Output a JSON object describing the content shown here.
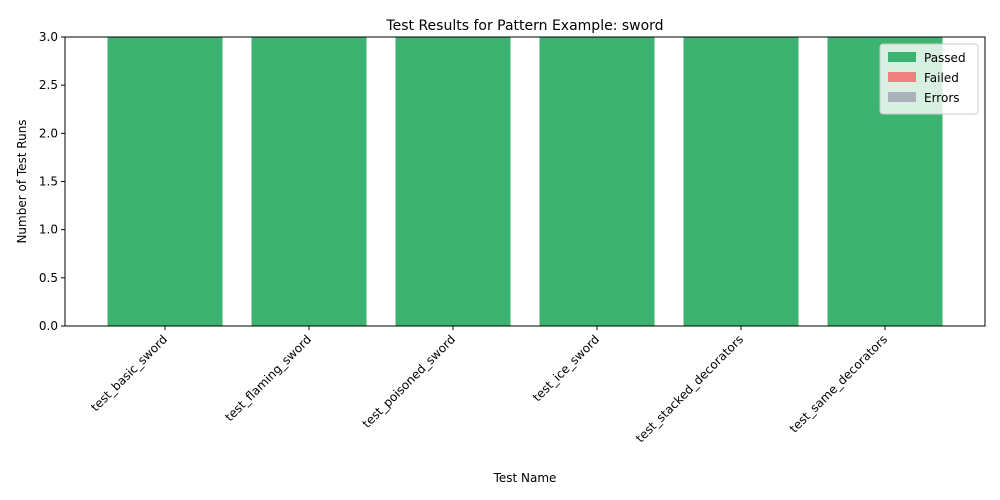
{
  "chart_data": {
    "type": "bar",
    "stacked": true,
    "title": "Test Results for Pattern Example: sword",
    "xlabel": "Test Name",
    "ylabel": "Number of Test Runs",
    "categories": [
      "test_basic_sword",
      "test_flaming_sword",
      "test_poisoned_sword",
      "test_ice_sword",
      "test_stacked_decorators",
      "test_same_decorators"
    ],
    "series": [
      {
        "name": "Passed",
        "color": "#3cb371",
        "values": [
          3,
          3,
          3,
          3,
          3,
          3
        ]
      },
      {
        "name": "Failed",
        "color": "#f08080",
        "values": [
          0,
          0,
          0,
          0,
          0,
          0
        ]
      },
      {
        "name": "Errors",
        "color": "#abb2b9",
        "values": [
          0,
          0,
          0,
          0,
          0,
          0
        ]
      }
    ],
    "ylim": [
      0,
      3
    ],
    "yticks": [
      "0.0",
      "0.5",
      "1.0",
      "1.5",
      "2.0",
      "2.5",
      "3.0"
    ],
    "grid": false,
    "legend_position": "top-right"
  }
}
